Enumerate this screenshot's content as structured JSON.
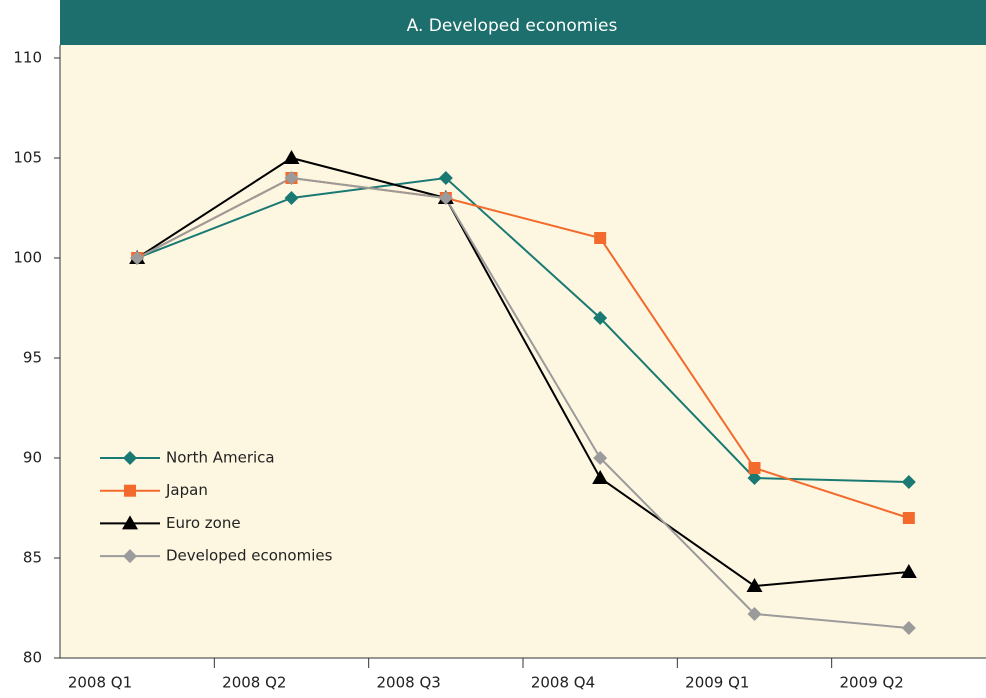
{
  "chart_data": {
    "type": "line",
    "title": "A. Developed economies",
    "categories": [
      "2008 Q1",
      "2008 Q2",
      "2008 Q3",
      "2008 Q4",
      "2009 Q1",
      "2009 Q2"
    ],
    "series": [
      {
        "name": "North America",
        "color": "#1a7a73",
        "marker": "diamond",
        "values": [
          100,
          103,
          104,
          97,
          89,
          88.8
        ]
      },
      {
        "name": "Japan",
        "color": "#f26a2c",
        "marker": "square",
        "values": [
          100,
          104,
          103,
          101,
          89.5,
          87
        ]
      },
      {
        "name": "Euro zone",
        "color": "#000000",
        "marker": "triangle",
        "values": [
          100,
          105,
          103,
          89,
          83.6,
          84.3
        ]
      },
      {
        "name": "Developed economies",
        "color": "#9b9b9b",
        "marker": "diamond",
        "values": [
          100,
          104,
          103,
          90,
          82.2,
          81.5
        ]
      }
    ],
    "ylim": [
      80,
      110
    ],
    "yticks": [
      80,
      85,
      90,
      95,
      100,
      105,
      110
    ],
    "grid": false,
    "legend": "left"
  }
}
